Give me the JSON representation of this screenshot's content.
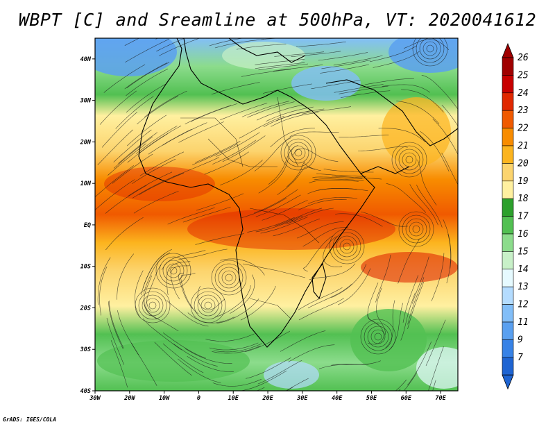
{
  "title": "WBPT [C] and Sreamline at 500hPa, VT: 2020041612",
  "credit": "GrADS: IGES/COLA",
  "map": {
    "lon_range": [
      -30,
      75
    ],
    "lat_range": [
      -40,
      45
    ],
    "lat_ticks": [
      {
        "value": 40,
        "label": "40N"
      },
      {
        "value": 30,
        "label": "30N"
      },
      {
        "value": 20,
        "label": "20N"
      },
      {
        "value": 10,
        "label": "10N"
      },
      {
        "value": 0,
        "label": "EQ"
      },
      {
        "value": -10,
        "label": "10S"
      },
      {
        "value": -20,
        "label": "20S"
      },
      {
        "value": -30,
        "label": "30S"
      },
      {
        "value": -40,
        "label": "40S"
      }
    ],
    "lon_ticks": [
      {
        "value": -30,
        "label": "30W"
      },
      {
        "value": -20,
        "label": "20W"
      },
      {
        "value": -10,
        "label": "10W"
      },
      {
        "value": 0,
        "label": "0"
      },
      {
        "value": 10,
        "label": "10E"
      },
      {
        "value": 20,
        "label": "20E"
      },
      {
        "value": 30,
        "label": "30E"
      },
      {
        "value": 40,
        "label": "40E"
      },
      {
        "value": 50,
        "label": "50E"
      },
      {
        "value": 60,
        "label": "60E"
      },
      {
        "value": 70,
        "label": "70E"
      }
    ]
  },
  "colorbar": {
    "labels": [
      "26",
      "25",
      "24",
      "23",
      "22",
      "21",
      "20",
      "19",
      "18",
      "17",
      "16",
      "15",
      "14",
      "13",
      "12",
      "11",
      "9",
      "7"
    ],
    "colors": [
      "#a00000",
      "#c80000",
      "#e02800",
      "#f05a00",
      "#f88c00",
      "#fcb41e",
      "#fcd46e",
      "#fff0a0",
      "#2ca02c",
      "#52c052",
      "#8cdc8c",
      "#c8f0c8",
      "#e6faff",
      "#b4dcff",
      "#82bef8",
      "#5aa0f0",
      "#3782e6",
      "#1e64d2"
    ]
  }
}
